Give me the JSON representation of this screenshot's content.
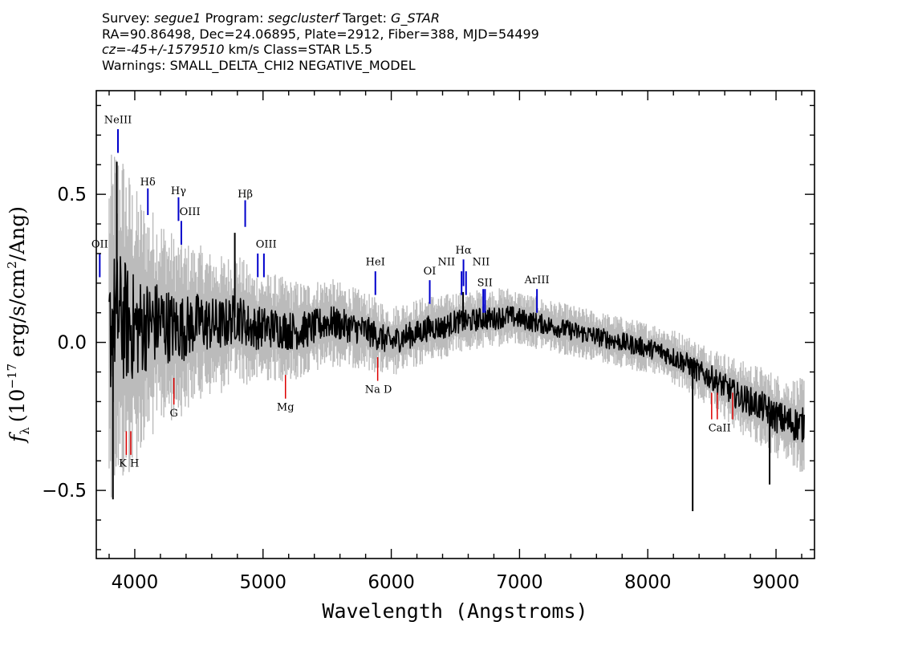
{
  "header": {
    "line1": {
      "survey_label": "Survey:",
      "survey": "segue1",
      "program_label": "Program:",
      "program": "segclusterf",
      "target_label": "Target:",
      "target": "G_STAR"
    },
    "line2": "RA=90.86498, Dec=24.06895, Plate=2912, Fiber=388, MJD=54499",
    "line3": {
      "cz": "cz=-45+/-1579510",
      "rest": "km/s Class=STAR L5.5"
    },
    "line4": "Warnings: SMALL_DELTA_CHI2 NEGATIVE_MODEL"
  },
  "chart_data": {
    "type": "line",
    "xlabel": "Wavelength (Angstroms)",
    "ylabel": "f_λ (10^-17 erg/s/cm^2/Ang)",
    "ylabel_parts": {
      "f": "f",
      "sub": "λ",
      "open": "(10",
      "exp": "−17",
      "mid": " erg/s/cm",
      "exp2": "2",
      "close": "/Ang)"
    },
    "xlim": [
      3700,
      9300
    ],
    "ylim": [
      -0.73,
      0.85
    ],
    "x_ticks": [
      4000,
      5000,
      6000,
      7000,
      8000,
      9000
    ],
    "x_tick_labels": [
      "4000",
      "5000",
      "6000",
      "7000",
      "8000",
      "9000"
    ],
    "y_ticks": [
      -0.5,
      0.0,
      0.5
    ],
    "y_tick_labels": [
      "−0.5",
      "0.0",
      "0.5"
    ],
    "series": [
      {
        "role": "error",
        "color": "#bbbbbb",
        "x": [
          3800,
          3900,
          4000,
          4100,
          4200,
          4300,
          4400,
          4500,
          4600,
          4800,
          5000,
          5200,
          5400,
          5600,
          5800,
          6000,
          6200,
          6400,
          6600,
          6800,
          7000,
          7200,
          7400,
          7600,
          7800,
          8000,
          8200,
          8400,
          8600,
          8800,
          9000,
          9200
        ],
        "y": [
          0.4,
          0.4,
          0.33,
          0.28,
          0.25,
          0.22,
          0.2,
          0.18,
          0.17,
          0.15,
          0.13,
          0.12,
          0.11,
          0.1,
          0.09,
          0.085,
          0.08,
          0.075,
          0.07,
          0.07,
          0.065,
          0.06,
          0.06,
          0.06,
          0.06,
          0.06,
          0.065,
          0.07,
          0.08,
          0.09,
          0.1,
          0.11
        ]
      },
      {
        "role": "flux",
        "color": "#000000",
        "x": [
          3800,
          3850,
          3900,
          3950,
          4000,
          4100,
          4200,
          4300,
          4400,
          4500,
          4600,
          4700,
          4800,
          4900,
          5000,
          5100,
          5200,
          5300,
          5400,
          5500,
          5600,
          5700,
          5800,
          5900,
          6000,
          6100,
          6200,
          6300,
          6400,
          6500,
          6600,
          6700,
          6800,
          6900,
          7000,
          7100,
          7200,
          7300,
          7400,
          7500,
          7600,
          7700,
          7800,
          7900,
          8000,
          8100,
          8200,
          8300,
          8400,
          8500,
          8600,
          8700,
          8800,
          8900,
          9000,
          9100,
          9200
        ],
        "y": [
          0.03,
          0.1,
          0.08,
          0.06,
          0.05,
          0.06,
          0.07,
          0.05,
          0.05,
          0.07,
          0.06,
          0.06,
          0.09,
          0.05,
          0.05,
          0.05,
          0.04,
          0.04,
          0.05,
          0.07,
          0.06,
          0.05,
          0.04,
          0.02,
          0.0,
          0.02,
          0.03,
          0.05,
          0.05,
          0.07,
          0.07,
          0.08,
          0.08,
          0.09,
          0.08,
          0.07,
          0.06,
          0.05,
          0.04,
          0.03,
          0.02,
          0.01,
          0.0,
          -0.01,
          -0.02,
          -0.03,
          -0.05,
          -0.07,
          -0.1,
          -0.12,
          -0.15,
          -0.18,
          -0.2,
          -0.22,
          -0.25,
          -0.27,
          -0.28
        ]
      }
    ],
    "spikes": [
      {
        "x": 3830,
        "y": -0.53
      },
      {
        "x": 3860,
        "y": 0.61
      },
      {
        "x": 4780,
        "y": 0.37
      },
      {
        "x": 8350,
        "y": -0.57
      },
      {
        "x": 8950,
        "y": -0.48
      },
      {
        "x": 6560,
        "y": 0.17
      }
    ],
    "emission_lines": [
      {
        "label": "OII",
        "x": 3727,
        "y1": 0.22,
        "y2": 0.3,
        "lx": 3727,
        "ly": 0.32
      },
      {
        "label": "NeIII",
        "x": 3869,
        "y1": 0.64,
        "y2": 0.72,
        "lx": 3869,
        "ly": 0.74
      },
      {
        "label": "Hδ",
        "x": 4102,
        "y1": 0.43,
        "y2": 0.52,
        "lx": 4102,
        "ly": 0.53
      },
      {
        "label": "Hγ",
        "x": 4341,
        "y1": 0.41,
        "y2": 0.49,
        "lx": 4341,
        "ly": 0.5
      },
      {
        "label": "OIII",
        "x": 4363,
        "y1": 0.33,
        "y2": 0.41,
        "lx": 4430,
        "ly": 0.43
      },
      {
        "label": "Hβ",
        "x": 4861,
        "y1": 0.39,
        "y2": 0.48,
        "lx": 4861,
        "ly": 0.49
      },
      {
        "label": "OIII",
        "x": 4959,
        "y1": 0.22,
        "y2": 0.3,
        "lx": 5025,
        "ly": 0.32
      },
      {
        "label": "OIII_b",
        "x": 5007,
        "y1": 0.22,
        "y2": 0.3,
        "lx": null,
        "ly": null
      },
      {
        "label": "HeI",
        "x": 5876,
        "y1": 0.16,
        "y2": 0.24,
        "lx": 5876,
        "ly": 0.26
      },
      {
        "label": "OI",
        "x": 6300,
        "y1": 0.13,
        "y2": 0.21,
        "lx": 6300,
        "ly": 0.23
      },
      {
        "label": "NII",
        "x": 6548,
        "y1": 0.16,
        "y2": 0.24,
        "lx": 6430,
        "ly": 0.26
      },
      {
        "label": "Hα",
        "x": 6563,
        "y1": 0.19,
        "y2": 0.28,
        "lx": 6563,
        "ly": 0.3
      },
      {
        "label": "NII",
        "x": 6583,
        "y1": 0.16,
        "y2": 0.24,
        "lx": 6700,
        "ly": 0.26
      },
      {
        "label": "SII",
        "x": 6717,
        "y1": 0.1,
        "y2": 0.18,
        "lx": 6730,
        "ly": 0.19
      },
      {
        "label": "SII_b",
        "x": 6731,
        "y1": 0.1,
        "y2": 0.18,
        "lx": null,
        "ly": null
      },
      {
        "label": "ArIII",
        "x": 7136,
        "y1": 0.1,
        "y2": 0.18,
        "lx": 7136,
        "ly": 0.2
      }
    ],
    "absorption_lines": [
      {
        "label": "K",
        "x": 3934,
        "y1": -0.3,
        "y2": -0.38
      },
      {
        "label": "H",
        "x": 3969,
        "y1": -0.3,
        "y2": -0.38
      },
      {
        "label": "G",
        "x": 4305,
        "y1": -0.12,
        "y2": -0.21
      },
      {
        "label": "Mg",
        "x": 5175,
        "y1": -0.11,
        "y2": -0.19
      },
      {
        "label": "Na",
        "x": 5894,
        "y1": -0.05,
        "y2": -0.13
      },
      {
        "label": "CaII_a",
        "x": 8498,
        "y1": -0.17,
        "y2": -0.26
      },
      {
        "label": "CaII_b",
        "x": 8542,
        "y1": -0.17,
        "y2": -0.26
      },
      {
        "label": "CaII_c",
        "x": 8662,
        "y1": -0.17,
        "y2": -0.26
      }
    ],
    "absorption_labels": [
      {
        "text": "K H",
        "x": 3955,
        "y": -0.42
      },
      {
        "text": "G",
        "x": 4305,
        "y": -0.25
      },
      {
        "text": "Mg",
        "x": 5175,
        "y": -0.23
      },
      {
        "text": "Na  D",
        "x": 5900,
        "y": -0.17
      },
      {
        "text": "CaII",
        "x": 8560,
        "y": -0.3
      }
    ]
  },
  "colors": {
    "emission": "#0000cc",
    "absorption": "#dd0000",
    "flux": "#000000",
    "error": "#bbbbbb",
    "axes": "#000000"
  }
}
